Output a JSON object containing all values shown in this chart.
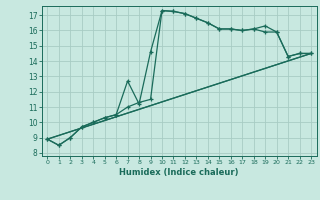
{
  "title": "",
  "xlabel": "Humidex (Indice chaleur)",
  "bg_color": "#c8e8e0",
  "line_color": "#1a6b5a",
  "grid_color": "#a8ccc4",
  "xlim": [
    -0.5,
    23.5
  ],
  "ylim": [
    7.8,
    17.6
  ],
  "xticks": [
    0,
    1,
    2,
    3,
    4,
    5,
    6,
    7,
    8,
    9,
    10,
    11,
    12,
    13,
    14,
    15,
    16,
    17,
    18,
    19,
    20,
    21,
    22,
    23
  ],
  "yticks": [
    8,
    9,
    10,
    11,
    12,
    13,
    14,
    15,
    16,
    17
  ],
  "line1_x": [
    0,
    1,
    2,
    3,
    4,
    5,
    6,
    7,
    8,
    9,
    10,
    11,
    12,
    13,
    14,
    15,
    16,
    17,
    18,
    19,
    20,
    21,
    22,
    23
  ],
  "line1_y": [
    8.9,
    8.5,
    9.0,
    9.7,
    10.0,
    10.3,
    10.5,
    11.0,
    11.3,
    11.5,
    17.3,
    17.25,
    17.1,
    16.8,
    16.5,
    16.1,
    16.1,
    16.0,
    16.1,
    16.3,
    15.9,
    14.3,
    14.5,
    14.5
  ],
  "line2_x": [
    0,
    1,
    2,
    3,
    4,
    5,
    6,
    7,
    8,
    9,
    10,
    11,
    12,
    13,
    14,
    15,
    16,
    17,
    18,
    19,
    20,
    21,
    22,
    23
  ],
  "line2_y": [
    8.9,
    8.5,
    9.0,
    9.7,
    10.0,
    10.3,
    10.5,
    12.7,
    11.2,
    14.6,
    17.3,
    17.25,
    17.1,
    16.8,
    16.5,
    16.1,
    16.1,
    16.0,
    16.1,
    15.9,
    15.9,
    14.3,
    14.5,
    14.5
  ],
  "line3_x": [
    0,
    23
  ],
  "line3_y": [
    8.9,
    14.5
  ],
  "line4_x": [
    0,
    23
  ],
  "line4_y": [
    8.9,
    14.5
  ]
}
